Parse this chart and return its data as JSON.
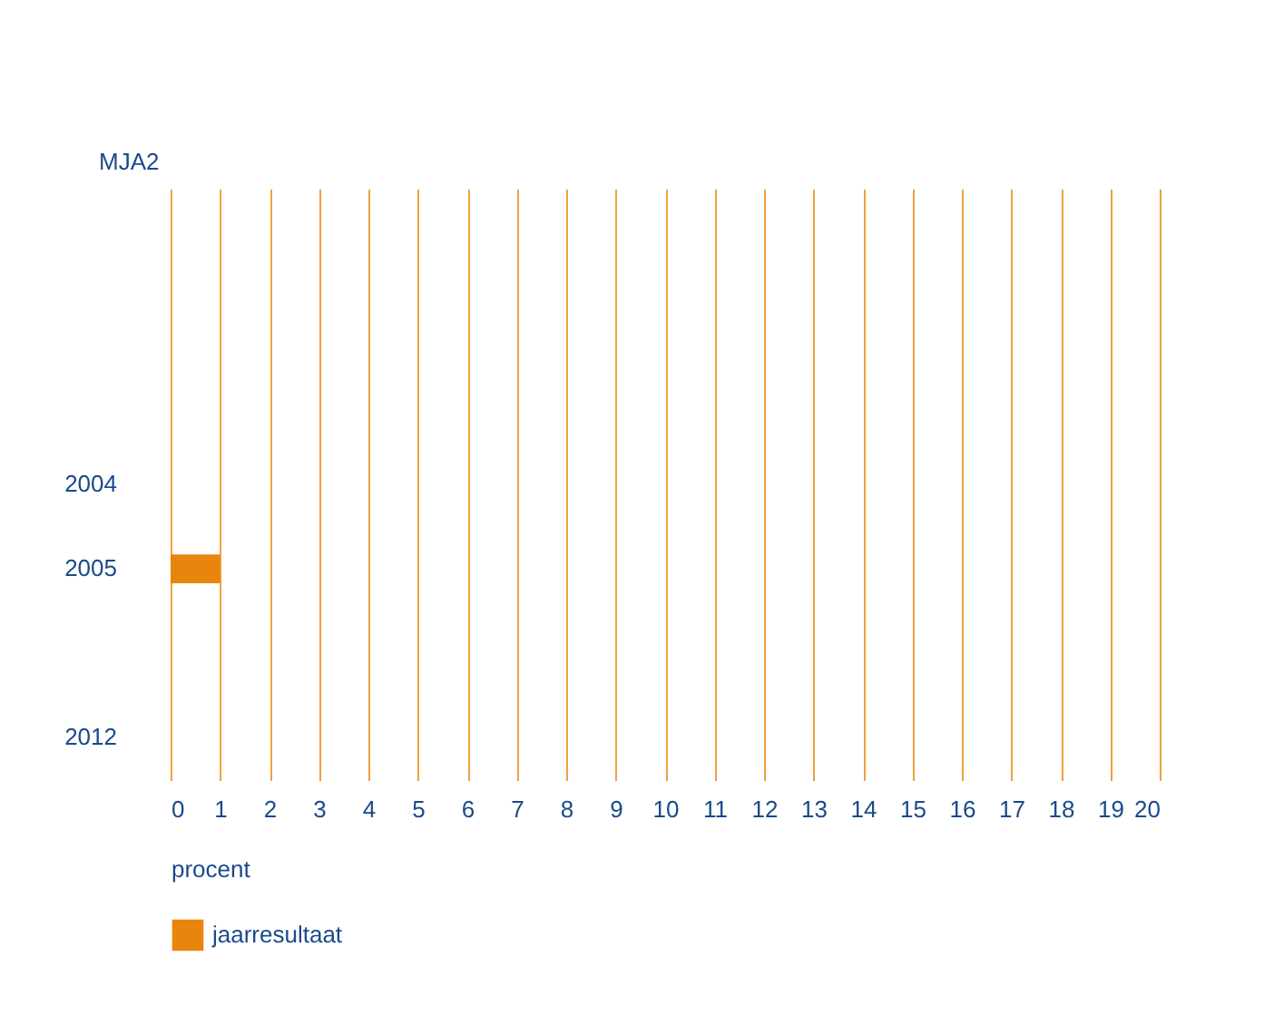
{
  "chart_data": {
    "type": "bar",
    "orientation": "horizontal",
    "ylabel": "MJA2",
    "xlabel": "procent",
    "categories": [
      null,
      null,
      null,
      "2004",
      "2005",
      null,
      "2012"
    ],
    "series": [
      {
        "name": "jaarresultaat",
        "color": "#e8850c",
        "values": [
          null,
          null,
          null,
          null,
          1,
          null,
          null
        ]
      }
    ],
    "xlim": [
      0,
      20
    ],
    "xticks": [
      0,
      1,
      2,
      3,
      4,
      5,
      6,
      7,
      8,
      9,
      10,
      11,
      12,
      13,
      14,
      15,
      16,
      17,
      18,
      19,
      20
    ],
    "grid": "x",
    "legend": "bottom left"
  }
}
